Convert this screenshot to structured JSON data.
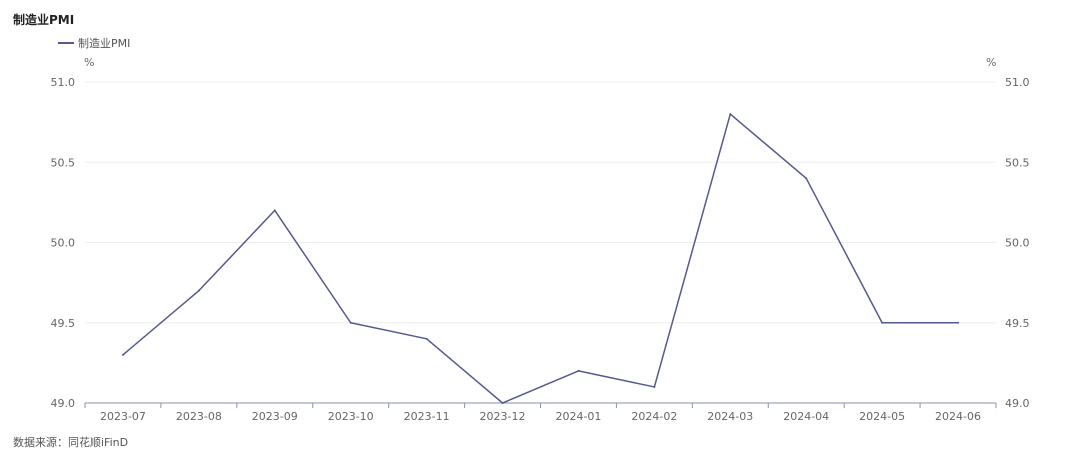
{
  "header": {
    "title": "制造业PMI"
  },
  "footer": {
    "source": "数据来源：同花顺iFinD"
  },
  "chart_data": {
    "type": "line",
    "title": "制造业PMI",
    "xlabel": "",
    "ylabel": "",
    "y_unit_left": "%",
    "y_unit_right": "%",
    "ylim": [
      49.0,
      51.0
    ],
    "yticks": [
      "49.0",
      "49.5",
      "50.0",
      "50.5",
      "51.0"
    ],
    "grid": "horizontal",
    "legend_position": "top-left",
    "categories": [
      "2023-07",
      "2023-08",
      "2023-09",
      "2023-10",
      "2023-11",
      "2023-12",
      "2024-01",
      "2024-02",
      "2024-03",
      "2024-04",
      "2024-05",
      "2024-06"
    ],
    "series": [
      {
        "name": "制造业PMI",
        "color": "#55598f",
        "values": [
          49.3,
          49.7,
          50.2,
          49.5,
          49.4,
          49.0,
          49.2,
          49.1,
          50.8,
          50.4,
          49.5,
          49.5
        ]
      }
    ]
  }
}
